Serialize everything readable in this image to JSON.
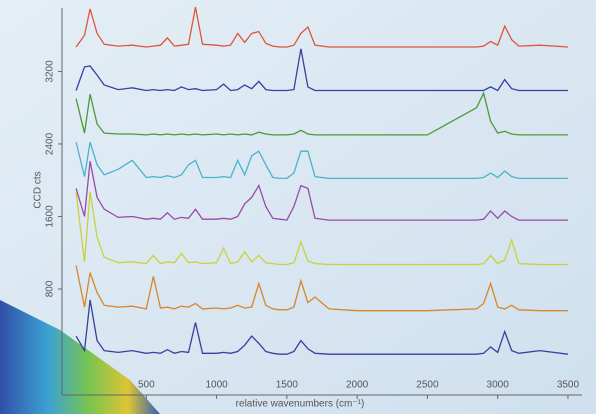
{
  "chart_data": {
    "type": "line",
    "x_label": "relative wavenumbers (cm⁻¹)",
    "y_label": "CCD cts",
    "x": [
      0,
      60,
      100,
      150,
      200,
      300,
      400,
      500,
      550,
      600,
      650,
      700,
      750,
      800,
      850,
      900,
      1000,
      1050,
      1100,
      1150,
      1200,
      1250,
      1300,
      1350,
      1400,
      1450,
      1500,
      1550,
      1600,
      1650,
      1700,
      1800,
      2000,
      2500,
      2850,
      2900,
      2950,
      3000,
      3050,
      3100,
      3150,
      3300,
      3500
    ],
    "xlim": [
      -100,
      3600
    ],
    "xticks": [
      500,
      1000,
      1500,
      2000,
      2500,
      3000,
      3500
    ],
    "ylim": [
      -370,
      3900
    ],
    "yticks": [
      800,
      1600,
      2400,
      3200
    ],
    "series": [
      {
        "color": "#e0553a",
        "values": [
          3470,
          3600,
          3890,
          3620,
          3500,
          3480,
          3490,
          3470,
          3480,
          3490,
          3570,
          3480,
          3490,
          3500,
          3910,
          3500,
          3490,
          3480,
          3490,
          3620,
          3520,
          3620,
          3640,
          3510,
          3480,
          3470,
          3470,
          3490,
          3620,
          3690,
          3490,
          3470,
          3470,
          3470,
          3470,
          3480,
          3530,
          3490,
          3700,
          3550,
          3480,
          3490,
          3470
        ]
      },
      {
        "color": "#3a3f9e",
        "values": [
          2990,
          3250,
          3260,
          3160,
          3050,
          3000,
          3020,
          2990,
          3000,
          2990,
          3000,
          2990,
          3030,
          3000,
          3010,
          2990,
          3000,
          3060,
          2990,
          3000,
          3050,
          3010,
          3090,
          3000,
          2990,
          2990,
          2990,
          3000,
          3450,
          3030,
          2990,
          2990,
          2990,
          2990,
          2990,
          2990,
          3030,
          2990,
          3110,
          3010,
          2990,
          2990,
          2990
        ]
      },
      {
        "color": "#4a9a3a",
        "values": [
          2900,
          2520,
          2950,
          2620,
          2520,
          2510,
          2510,
          2500,
          2510,
          2500,
          2510,
          2500,
          2510,
          2500,
          2510,
          2500,
          2510,
          2500,
          2510,
          2500,
          2510,
          2500,
          2530,
          2510,
          2500,
          2500,
          2500,
          2510,
          2550,
          2510,
          2500,
          2500,
          2500,
          2500,
          2800,
          2960,
          2650,
          2520,
          2540,
          2510,
          2500,
          2500,
          2500
        ]
      },
      {
        "color": "#4ab4c8",
        "values": [
          2420,
          2040,
          2420,
          2170,
          2060,
          2120,
          2220,
          2030,
          2040,
          2030,
          2050,
          2030,
          2060,
          2170,
          2220,
          2030,
          2030,
          2040,
          2030,
          2220,
          2060,
          2270,
          2320,
          2170,
          2030,
          2020,
          2020,
          2080,
          2320,
          2320,
          2040,
          2020,
          2020,
          2020,
          2020,
          2030,
          2080,
          2030,
          2100,
          2040,
          2020,
          2020,
          2020
        ]
      },
      {
        "color": "#9b4aa8",
        "values": [
          1910,
          1600,
          2210,
          1810,
          1680,
          1590,
          1600,
          1570,
          1580,
          1570,
          1640,
          1570,
          1590,
          1580,
          1680,
          1570,
          1570,
          1580,
          1570,
          1600,
          1740,
          1810,
          1940,
          1710,
          1580,
          1570,
          1560,
          1710,
          1940,
          1910,
          1580,
          1560,
          1560,
          1560,
          1560,
          1570,
          1660,
          1580,
          1660,
          1600,
          1560,
          1560,
          1560
        ]
      },
      {
        "color": "#c8d23a",
        "values": [
          1870,
          1100,
          1870,
          1370,
          1150,
          1090,
          1100,
          1080,
          1170,
          1080,
          1100,
          1090,
          1190,
          1090,
          1100,
          1080,
          1090,
          1250,
          1080,
          1100,
          1210,
          1100,
          1170,
          1090,
          1080,
          1070,
          1070,
          1090,
          1320,
          1110,
          1080,
          1070,
          1070,
          1070,
          1070,
          1080,
          1170,
          1080,
          1120,
          1340,
          1080,
          1070,
          1070
        ]
      },
      {
        "color": "#d8862a",
        "values": [
          1060,
          600,
          980,
          760,
          620,
          600,
          610,
          580,
          940,
          590,
          600,
          580,
          610,
          600,
          640,
          580,
          590,
          580,
          590,
          620,
          590,
          600,
          860,
          620,
          580,
          570,
          570,
          600,
          890,
          650,
          710,
          580,
          560,
          560,
          580,
          640,
          860,
          600,
          580,
          620,
          570,
          560,
          560
        ]
      },
      {
        "color": "#3a3f9a",
        "values": [
          280,
          120,
          680,
          230,
          120,
          100,
          120,
          90,
          100,
          90,
          130,
          90,
          110,
          100,
          430,
          90,
          90,
          100,
          90,
          110,
          180,
          280,
          200,
          110,
          90,
          80,
          80,
          110,
          230,
          140,
          90,
          80,
          80,
          80,
          80,
          90,
          160,
          100,
          330,
          120,
          90,
          120,
          80
        ]
      }
    ]
  }
}
